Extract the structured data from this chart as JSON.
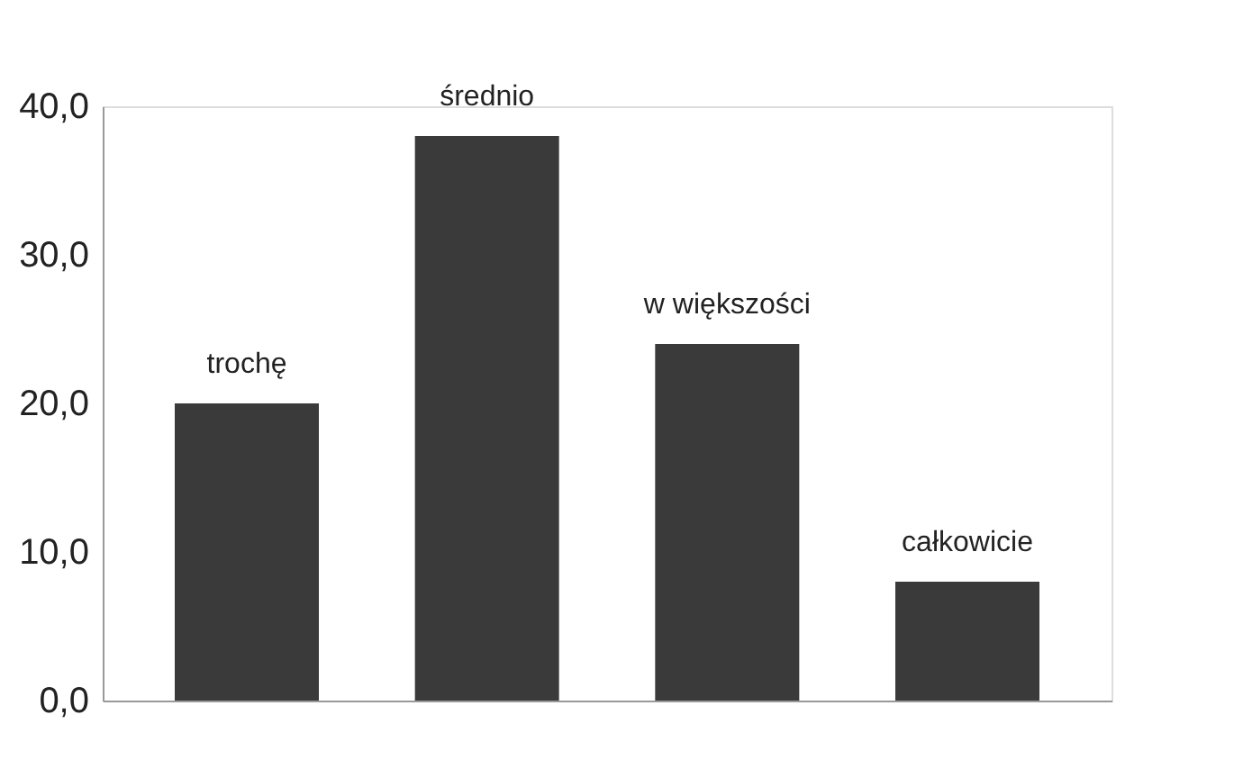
{
  "chart_data": {
    "type": "bar",
    "categories": [
      "trochę",
      "średnio",
      "w większości",
      "całkowicie"
    ],
    "values": [
      20,
      38,
      24,
      8
    ],
    "color": "#3a3a3a",
    "ylim": [
      0,
      40
    ],
    "yticks": [
      {
        "value": 0,
        "label": "0,0"
      },
      {
        "value": 10,
        "label": "10,0"
      },
      {
        "value": 20,
        "label": "20,0"
      },
      {
        "value": 30,
        "label": "30,0"
      },
      {
        "value": 40,
        "label": "40,0"
      }
    ],
    "grid": false
  }
}
